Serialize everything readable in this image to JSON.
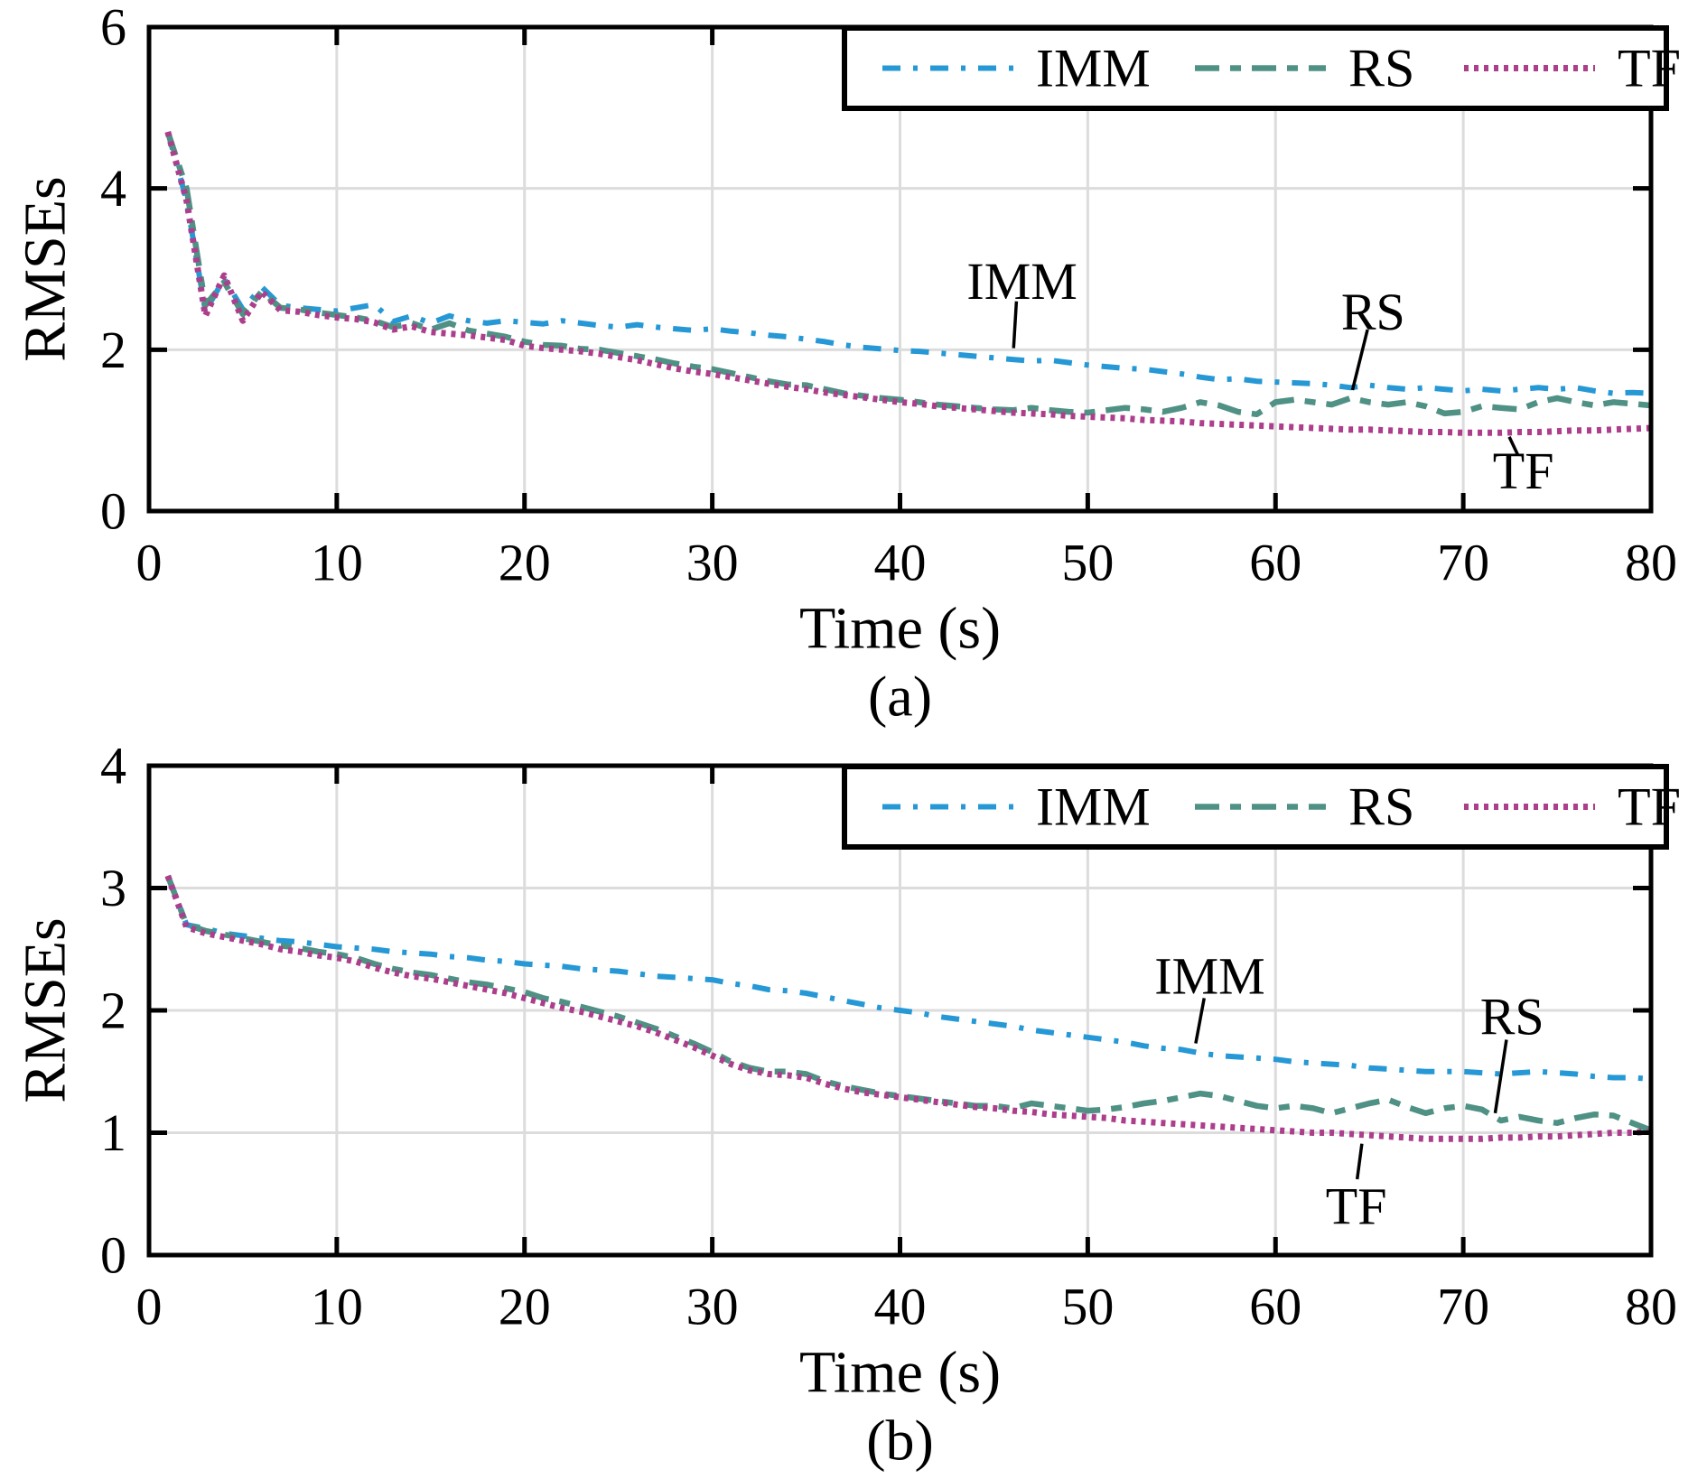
{
  "figure": {
    "background": "#ffffff",
    "frame_color": "#000000",
    "grid_color": "#dcdcdc",
    "text_color": "#000000",
    "annotation_line_color": "#000000"
  },
  "chart_data": [
    {
      "type": "line",
      "caption": "(a)",
      "xlabel": "Time (s)",
      "ylabel": "RMSEs",
      "xlim": [
        0,
        80
      ],
      "ylim": [
        0,
        6
      ],
      "xticks": [
        0,
        10,
        20,
        30,
        40,
        50,
        60,
        70,
        80
      ],
      "yticks": [
        0,
        2,
        4,
        6
      ],
      "grid": true,
      "legend_position": "top-right",
      "legend_labels": [
        "IMM",
        "RS",
        "TF"
      ],
      "x_start": 1,
      "series": [
        {
          "name": "IMM",
          "color": "#2598d5",
          "dash": "dashdot",
          "values": [
            4.7,
            3.85,
            2.48,
            2.88,
            2.5,
            2.78,
            2.55,
            2.52,
            2.5,
            2.48,
            2.52,
            2.56,
            2.35,
            2.42,
            2.33,
            2.42,
            2.36,
            2.33,
            2.36,
            2.34,
            2.32,
            2.36,
            2.33,
            2.3,
            2.28,
            2.31,
            2.28,
            2.26,
            2.24,
            2.26,
            2.23,
            2.21,
            2.18,
            2.16,
            2.13,
            2.1,
            2.06,
            2.03,
            2.01,
            1.99,
            1.98,
            1.96,
            1.94,
            1.92,
            1.9,
            1.88,
            1.86,
            1.87,
            1.84,
            1.81,
            1.79,
            1.77,
            1.76,
            1.73,
            1.7,
            1.66,
            1.63,
            1.64,
            1.61,
            1.6,
            1.59,
            1.58,
            1.56,
            1.53,
            1.56,
            1.53,
            1.51,
            1.53,
            1.51,
            1.49,
            1.51,
            1.49,
            1.51,
            1.53,
            1.51,
            1.53,
            1.49,
            1.46,
            1.47,
            1.46
          ]
        },
        {
          "name": "RS",
          "color": "#4f9184",
          "dash": "longdash",
          "values": [
            4.7,
            4.0,
            2.55,
            2.84,
            2.44,
            2.72,
            2.52,
            2.5,
            2.46,
            2.43,
            2.4,
            2.36,
            2.28,
            2.33,
            2.25,
            2.33,
            2.24,
            2.2,
            2.16,
            2.1,
            2.06,
            2.05,
            2.01,
            2.0,
            1.96,
            1.92,
            1.88,
            1.83,
            1.79,
            1.76,
            1.71,
            1.66,
            1.61,
            1.57,
            1.56,
            1.51,
            1.46,
            1.43,
            1.4,
            1.38,
            1.35,
            1.32,
            1.3,
            1.28,
            1.26,
            1.25,
            1.28,
            1.25,
            1.23,
            1.22,
            1.25,
            1.28,
            1.26,
            1.23,
            1.28,
            1.35,
            1.31,
            1.23,
            1.2,
            1.35,
            1.38,
            1.35,
            1.32,
            1.4,
            1.35,
            1.32,
            1.35,
            1.3,
            1.21,
            1.23,
            1.3,
            1.28,
            1.26,
            1.35,
            1.4,
            1.35,
            1.31,
            1.35,
            1.33,
            1.31
          ]
        },
        {
          "name": "TF",
          "color": "#ac3e8c",
          "dash": "dotted",
          "values": [
            4.7,
            3.85,
            2.42,
            2.92,
            2.36,
            2.72,
            2.49,
            2.47,
            2.43,
            2.4,
            2.38,
            2.34,
            2.25,
            2.29,
            2.22,
            2.2,
            2.18,
            2.15,
            2.12,
            2.05,
            2.02,
            2.0,
            1.98,
            1.95,
            1.91,
            1.87,
            1.82,
            1.77,
            1.73,
            1.7,
            1.66,
            1.62,
            1.58,
            1.54,
            1.51,
            1.47,
            1.44,
            1.41,
            1.38,
            1.35,
            1.33,
            1.3,
            1.28,
            1.26,
            1.24,
            1.22,
            1.21,
            1.2,
            1.18,
            1.17,
            1.16,
            1.15,
            1.13,
            1.12,
            1.11,
            1.09,
            1.08,
            1.07,
            1.06,
            1.05,
            1.04,
            1.03,
            1.02,
            1.01,
            1.01,
            1.0,
            0.99,
            0.98,
            0.98,
            0.97,
            0.97,
            0.97,
            0.98,
            0.98,
            0.99,
            1.0,
            1.0,
            1.01,
            1.02,
            1.03
          ]
        }
      ],
      "annotations": [
        {
          "text": "IMM",
          "tx": 46.5,
          "ty": 2.85,
          "lx1": 46.2,
          "ly1": 2.6,
          "lx2": 46.05,
          "ly2": 2.02
        },
        {
          "text": "RS",
          "tx": 65.2,
          "ty": 2.47,
          "lx1": 64.9,
          "ly1": 2.25,
          "lx2": 64.1,
          "ly2": 1.5
        },
        {
          "text": "TF",
          "tx": 73.2,
          "ty": 0.5,
          "lx1": 72.9,
          "ly1": 0.7,
          "lx2": 72.45,
          "ly2": 0.92
        }
      ]
    },
    {
      "type": "line",
      "caption": "(b)",
      "xlabel": "Time (s)",
      "ylabel": "RMSEs",
      "xlim": [
        0,
        80
      ],
      "ylim": [
        0,
        4
      ],
      "xticks": [
        0,
        10,
        20,
        30,
        40,
        50,
        60,
        70,
        80
      ],
      "yticks": [
        0,
        1,
        2,
        3,
        4
      ],
      "grid": true,
      "legend_position": "top-right",
      "legend_labels": [
        "IMM",
        "RS",
        "TF"
      ],
      "x_start": 1,
      "series": [
        {
          "name": "IMM",
          "color": "#2598d5",
          "dash": "dashdot",
          "values": [
            3.1,
            2.7,
            2.67,
            2.63,
            2.61,
            2.59,
            2.57,
            2.56,
            2.54,
            2.52,
            2.51,
            2.5,
            2.48,
            2.47,
            2.46,
            2.44,
            2.43,
            2.41,
            2.4,
            2.38,
            2.37,
            2.36,
            2.34,
            2.33,
            2.32,
            2.3,
            2.28,
            2.27,
            2.26,
            2.25,
            2.22,
            2.2,
            2.17,
            2.16,
            2.14,
            2.11,
            2.08,
            2.05,
            2.02,
            2.0,
            1.98,
            1.95,
            1.93,
            1.91,
            1.89,
            1.87,
            1.84,
            1.82,
            1.8,
            1.78,
            1.76,
            1.74,
            1.71,
            1.69,
            1.68,
            1.65,
            1.63,
            1.62,
            1.61,
            1.6,
            1.58,
            1.57,
            1.56,
            1.55,
            1.53,
            1.52,
            1.51,
            1.5,
            1.5,
            1.5,
            1.49,
            1.48,
            1.49,
            1.5,
            1.49,
            1.48,
            1.46,
            1.45,
            1.45,
            1.44
          ]
        },
        {
          "name": "RS",
          "color": "#4f9184",
          "dash": "longdash",
          "values": [
            3.1,
            2.7,
            2.65,
            2.62,
            2.59,
            2.56,
            2.53,
            2.51,
            2.48,
            2.46,
            2.43,
            2.38,
            2.34,
            2.31,
            2.29,
            2.26,
            2.23,
            2.21,
            2.18,
            2.15,
            2.1,
            2.07,
            2.03,
            1.99,
            1.95,
            1.9,
            1.85,
            1.79,
            1.73,
            1.66,
            1.58,
            1.53,
            1.5,
            1.5,
            1.48,
            1.42,
            1.38,
            1.35,
            1.32,
            1.3,
            1.28,
            1.26,
            1.24,
            1.22,
            1.22,
            1.2,
            1.24,
            1.22,
            1.2,
            1.18,
            1.19,
            1.21,
            1.24,
            1.26,
            1.29,
            1.32,
            1.3,
            1.26,
            1.22,
            1.2,
            1.22,
            1.2,
            1.16,
            1.2,
            1.24,
            1.27,
            1.21,
            1.16,
            1.2,
            1.22,
            1.19,
            1.1,
            1.13,
            1.1,
            1.08,
            1.12,
            1.15,
            1.14,
            1.08,
            1.02
          ]
        },
        {
          "name": "TF",
          "color": "#ac3e8c",
          "dash": "dotted",
          "values": [
            3.1,
            2.68,
            2.63,
            2.6,
            2.57,
            2.54,
            2.5,
            2.48,
            2.45,
            2.43,
            2.4,
            2.35,
            2.31,
            2.28,
            2.26,
            2.23,
            2.2,
            2.17,
            2.14,
            2.1,
            2.06,
            2.02,
            1.99,
            1.95,
            1.91,
            1.87,
            1.82,
            1.76,
            1.7,
            1.63,
            1.56,
            1.51,
            1.48,
            1.47,
            1.45,
            1.4,
            1.36,
            1.33,
            1.31,
            1.29,
            1.27,
            1.25,
            1.23,
            1.21,
            1.2,
            1.18,
            1.17,
            1.15,
            1.14,
            1.13,
            1.12,
            1.1,
            1.09,
            1.08,
            1.07,
            1.06,
            1.05,
            1.04,
            1.03,
            1.02,
            1.01,
            1.0,
            1.0,
            0.99,
            0.98,
            0.97,
            0.96,
            0.95,
            0.95,
            0.95,
            0.95,
            0.96,
            0.96,
            0.97,
            0.97,
            0.98,
            0.99,
            1.0,
            1.0,
            1.01
          ]
        }
      ],
      "annotations": [
        {
          "text": "IMM",
          "tx": 56.5,
          "ty": 2.28,
          "lx1": 56.2,
          "ly1": 2.1,
          "lx2": 55.75,
          "ly2": 1.73
        },
        {
          "text": "RS",
          "tx": 72.6,
          "ty": 1.95,
          "lx1": 72.3,
          "ly1": 1.76,
          "lx2": 71.7,
          "ly2": 1.16
        },
        {
          "text": "TF",
          "tx": 64.3,
          "ty": 0.4,
          "lx1": 64.35,
          "ly1": 0.62,
          "lx2": 64.6,
          "ly2": 0.91
        }
      ]
    }
  ]
}
